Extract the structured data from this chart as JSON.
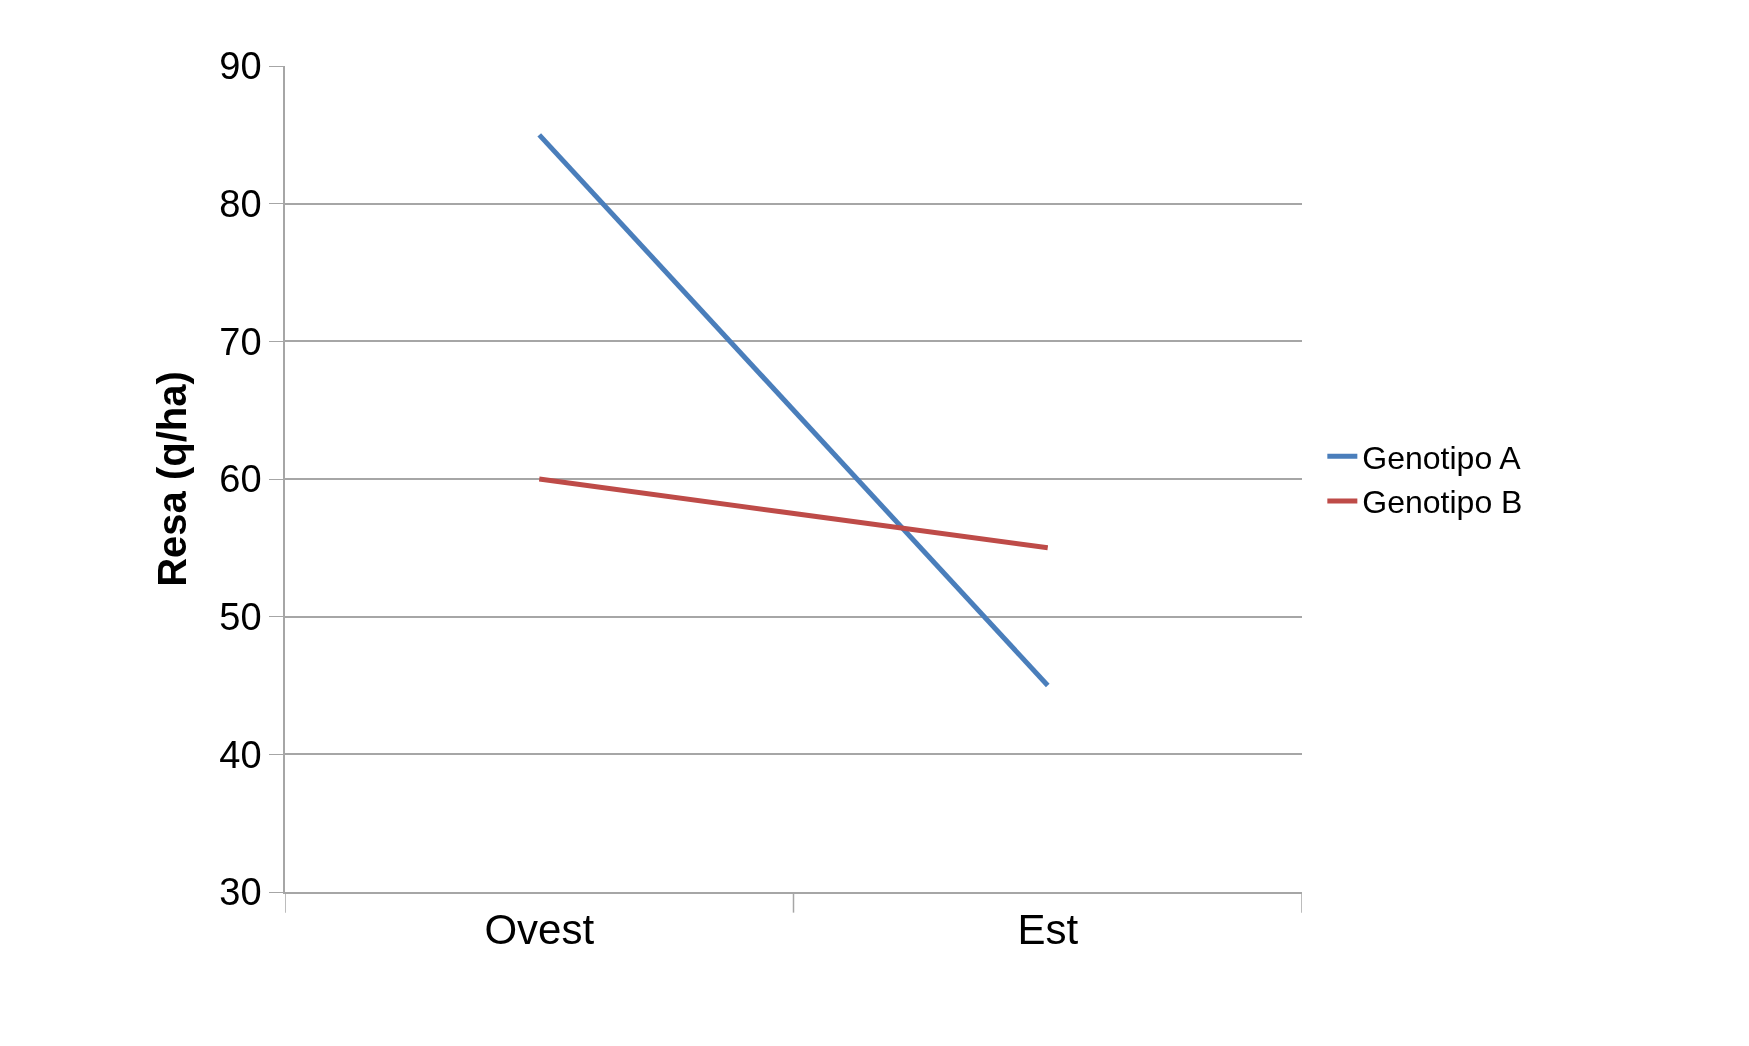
{
  "chart_data": {
    "type": "line",
    "ylabel": "Resa (q/ha)",
    "categories": [
      "Ovest",
      "Est"
    ],
    "series": [
      {
        "name": "Genotipo A",
        "color": "#4a7ebb",
        "values": [
          85,
          45
        ]
      },
      {
        "name": "Genotipo B",
        "color": "#be4b48",
        "values": [
          60,
          55
        ]
      }
    ],
    "ylim": [
      30,
      90
    ],
    "yticks": [
      30,
      40,
      50,
      60,
      70,
      80,
      90
    ],
    "grid": "y",
    "legend": "right"
  }
}
